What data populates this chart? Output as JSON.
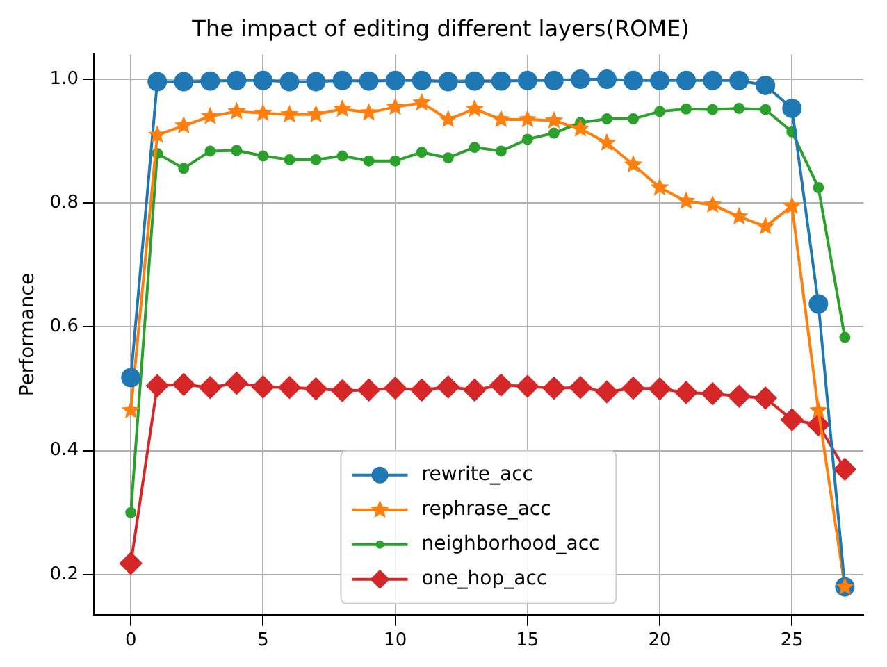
{
  "chart_data": {
    "type": "line",
    "title": "The impact of editing different layers(ROME)",
    "ylabel": "Performance",
    "x": [
      0,
      1,
      2,
      3,
      4,
      5,
      6,
      7,
      8,
      9,
      10,
      11,
      12,
      13,
      14,
      15,
      16,
      17,
      18,
      19,
      20,
      21,
      22,
      23,
      24,
      25,
      26,
      27
    ],
    "series": [
      {
        "name": "rewrite_acc",
        "color": "#1f77b4",
        "marker": "circle",
        "values": [
          0.518,
          0.996,
          0.996,
          0.997,
          0.998,
          0.998,
          0.996,
          0.996,
          0.998,
          0.997,
          0.998,
          0.998,
          0.996,
          0.997,
          0.997,
          0.998,
          0.998,
          1.0,
          1.0,
          0.998,
          0.998,
          0.998,
          0.998,
          0.998,
          0.99,
          0.953,
          0.637,
          0.18
        ]
      },
      {
        "name": "rephrase_acc",
        "color": "#ff7f0e",
        "marker": "star",
        "values": [
          0.465,
          0.91,
          0.925,
          0.94,
          0.948,
          0.945,
          0.943,
          0.943,
          0.952,
          0.946,
          0.955,
          0.962,
          0.935,
          0.952,
          0.935,
          0.935,
          0.933,
          0.92,
          0.897,
          0.862,
          0.825,
          0.803,
          0.797,
          0.778,
          0.762,
          0.795,
          0.465,
          0.18
        ]
      },
      {
        "name": "neighborhood_acc",
        "color": "#2ca02c",
        "marker": "dot",
        "values": [
          0.3,
          0.88,
          0.856,
          0.884,
          0.885,
          0.876,
          0.87,
          0.87,
          0.876,
          0.868,
          0.868,
          0.882,
          0.873,
          0.89,
          0.884,
          0.903,
          0.913,
          0.93,
          0.936,
          0.936,
          0.948,
          0.952,
          0.951,
          0.953,
          0.951,
          0.915,
          0.825,
          0.583
        ]
      },
      {
        "name": "one_hop_acc",
        "color": "#d62728",
        "marker": "diamond",
        "values": [
          0.218,
          0.505,
          0.507,
          0.502,
          0.509,
          0.503,
          0.502,
          0.5,
          0.497,
          0.498,
          0.501,
          0.498,
          0.503,
          0.498,
          0.506,
          0.504,
          0.501,
          0.502,
          0.495,
          0.501,
          0.5,
          0.494,
          0.492,
          0.488,
          0.485,
          0.45,
          0.442,
          0.37
        ]
      }
    ],
    "xlim": [
      -1.4,
      27.7
    ],
    "ylim": [
      0.135,
      1.04
    ],
    "xticks": [
      0,
      5,
      10,
      15,
      20,
      25
    ],
    "yticks": [
      {
        "value": 0.2,
        "label": "0.2"
      },
      {
        "value": 0.4,
        "label": "0.4"
      },
      {
        "value": 0.6,
        "label": "0.6"
      },
      {
        "value": 0.8,
        "label": "0.8"
      },
      {
        "value": 1.0,
        "label": "1.0"
      }
    ],
    "grid": true,
    "legend": "bottom",
    "line_style": "solid"
  }
}
